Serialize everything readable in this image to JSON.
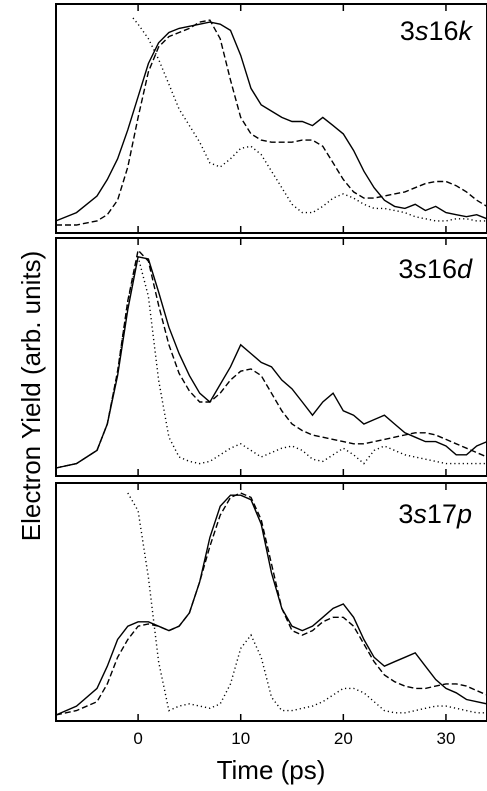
{
  "chart_data": {
    "type": "line",
    "xlabel": "Time (ps)",
    "ylabel": "Electron Yield (arb. units)",
    "xlim": [
      -8,
      34
    ],
    "xticks": [
      0,
      10,
      20,
      30
    ],
    "grid": false,
    "panels": [
      {
        "label_prefix": "3",
        "label_italic1": "s",
        "label_mid": "16",
        "label_italic2": "k",
        "ylim": [
          0,
          1
        ],
        "series": [
          {
            "style": "solid",
            "x": [
              -8,
              -6,
              -4,
              -3,
              -2,
              -1,
              0,
              1,
              2,
              3,
              4,
              5,
              6,
              7,
              8,
              9,
              10,
              11,
              12,
              13,
              14,
              15,
              16,
              17,
              18,
              19,
              20,
              21,
              22,
              23,
              24,
              25,
              26,
              27,
              28,
              29,
              30,
              31,
              32,
              33,
              34
            ],
            "y": [
              0.02,
              0.06,
              0.14,
              0.22,
              0.32,
              0.46,
              0.62,
              0.78,
              0.88,
              0.93,
              0.95,
              0.96,
              0.97,
              0.98,
              0.97,
              0.94,
              0.82,
              0.66,
              0.58,
              0.55,
              0.52,
              0.5,
              0.5,
              0.48,
              0.52,
              0.48,
              0.44,
              0.36,
              0.26,
              0.18,
              0.12,
              0.09,
              0.08,
              0.1,
              0.07,
              0.09,
              0.06,
              0.05,
              0.04,
              0.05,
              0.03
            ]
          },
          {
            "style": "dashed",
            "x": [
              -8,
              -6,
              -4,
              -3,
              -2,
              -1,
              0,
              1,
              2,
              3,
              4,
              5,
              6,
              7,
              8,
              9,
              10,
              11,
              12,
              13,
              14,
              15,
              16,
              17,
              18,
              19,
              20,
              21,
              22,
              23,
              24,
              25,
              26,
              27,
              28,
              29,
              30,
              31,
              32,
              33,
              34
            ],
            "y": [
              0.0,
              0.0,
              0.02,
              0.05,
              0.12,
              0.28,
              0.52,
              0.74,
              0.86,
              0.91,
              0.93,
              0.95,
              0.98,
              0.99,
              0.9,
              0.7,
              0.52,
              0.44,
              0.41,
              0.4,
              0.4,
              0.4,
              0.41,
              0.41,
              0.38,
              0.3,
              0.22,
              0.16,
              0.13,
              0.13,
              0.14,
              0.15,
              0.16,
              0.18,
              0.2,
              0.21,
              0.21,
              0.19,
              0.16,
              0.12,
              0.09
            ]
          },
          {
            "style": "dotted",
            "x": [
              -0.5,
              0,
              1,
              2,
              3,
              4,
              5,
              6,
              7,
              8,
              9,
              10,
              11,
              12,
              13,
              14,
              15,
              16,
              17,
              18,
              19,
              20,
              21,
              22,
              23,
              24,
              25,
              26,
              27,
              28,
              29,
              30,
              31,
              32,
              33,
              34
            ],
            "y": [
              1.0,
              0.97,
              0.9,
              0.8,
              0.68,
              0.56,
              0.48,
              0.4,
              0.3,
              0.28,
              0.32,
              0.37,
              0.38,
              0.34,
              0.26,
              0.18,
              0.1,
              0.06,
              0.06,
              0.09,
              0.13,
              0.15,
              0.13,
              0.1,
              0.08,
              0.08,
              0.07,
              0.06,
              0.04,
              0.03,
              0.02,
              0.02,
              0.03,
              0.03,
              0.02,
              0.02
            ]
          }
        ]
      },
      {
        "label_prefix": "3",
        "label_italic1": "s",
        "label_mid": "16",
        "label_italic2": "d",
        "ylim": [
          0,
          1
        ],
        "series": [
          {
            "style": "solid",
            "x": [
              -8,
              -6,
              -4,
              -3,
              -2,
              -1,
              0,
              1,
              2,
              3,
              4,
              5,
              6,
              7,
              8,
              9,
              10,
              11,
              12,
              13,
              14,
              15,
              16,
              17,
              18,
              19,
              20,
              21,
              22,
              23,
              24,
              25,
              26,
              27,
              28,
              29,
              30,
              31,
              32,
              33,
              34
            ],
            "y": [
              0.0,
              0.02,
              0.08,
              0.2,
              0.42,
              0.72,
              0.96,
              0.95,
              0.8,
              0.64,
              0.52,
              0.42,
              0.34,
              0.3,
              0.38,
              0.46,
              0.56,
              0.52,
              0.48,
              0.46,
              0.4,
              0.36,
              0.3,
              0.24,
              0.3,
              0.34,
              0.26,
              0.24,
              0.2,
              0.22,
              0.24,
              0.2,
              0.16,
              0.14,
              0.12,
              0.12,
              0.1,
              0.06,
              0.06,
              0.1,
              0.12
            ]
          },
          {
            "style": "dashed",
            "x": [
              -8,
              -6,
              -4,
              -3,
              -2,
              -1,
              0,
              1,
              2,
              3,
              4,
              5,
              6,
              7,
              8,
              9,
              10,
              11,
              12,
              13,
              14,
              15,
              16,
              17,
              18,
              19,
              20,
              21,
              22,
              23,
              24,
              25,
              26,
              27,
              28,
              29,
              30,
              31,
              32,
              33,
              34
            ],
            "y": [
              0.0,
              0.02,
              0.08,
              0.2,
              0.44,
              0.76,
              0.99,
              0.94,
              0.74,
              0.56,
              0.43,
              0.35,
              0.3,
              0.3,
              0.34,
              0.4,
              0.44,
              0.45,
              0.42,
              0.34,
              0.26,
              0.2,
              0.17,
              0.15,
              0.14,
              0.13,
              0.12,
              0.11,
              0.11,
              0.12,
              0.13,
              0.14,
              0.15,
              0.16,
              0.16,
              0.15,
              0.13,
              0.11,
              0.09,
              0.07,
              0.05
            ]
          },
          {
            "style": "dotted",
            "x": [
              -8,
              -6,
              -4,
              -3,
              -2,
              -1,
              0,
              1,
              2,
              3,
              4,
              5,
              6,
              7,
              8,
              9,
              10,
              11,
              12,
              13,
              14,
              15,
              16,
              17,
              18,
              19,
              20,
              21,
              22,
              23,
              24,
              25,
              26,
              27,
              28,
              29,
              30,
              31,
              32,
              33,
              34
            ],
            "y": [
              0.0,
              0.02,
              0.08,
              0.2,
              0.44,
              0.76,
              0.96,
              0.78,
              0.4,
              0.14,
              0.05,
              0.03,
              0.02,
              0.03,
              0.06,
              0.09,
              0.11,
              0.08,
              0.05,
              0.07,
              0.09,
              0.1,
              0.08,
              0.04,
              0.03,
              0.06,
              0.09,
              0.06,
              0.02,
              0.08,
              0.1,
              0.08,
              0.06,
              0.05,
              0.04,
              0.03,
              0.02,
              0.02,
              0.02,
              0.02,
              0.02
            ]
          }
        ]
      },
      {
        "label_prefix": "3",
        "label_italic1": "s",
        "label_mid": "17",
        "label_italic2": "p",
        "ylim": [
          0,
          1
        ],
        "series": [
          {
            "style": "solid",
            "x": [
              -8,
              -6,
              -4,
              -3,
              -2,
              -1,
              0,
              1,
              2,
              3,
              4,
              5,
              6,
              7,
              8,
              9,
              10,
              11,
              12,
              13,
              14,
              15,
              16,
              17,
              18,
              19,
              20,
              21,
              22,
              23,
              24,
              25,
              26,
              27,
              28,
              29,
              30,
              31,
              32,
              33,
              34
            ],
            "y": [
              0.0,
              0.04,
              0.12,
              0.22,
              0.34,
              0.4,
              0.42,
              0.42,
              0.4,
              0.38,
              0.4,
              0.46,
              0.6,
              0.8,
              0.94,
              0.99,
              0.99,
              0.97,
              0.86,
              0.64,
              0.48,
              0.4,
              0.38,
              0.4,
              0.44,
              0.48,
              0.5,
              0.44,
              0.34,
              0.26,
              0.22,
              0.24,
              0.26,
              0.28,
              0.22,
              0.16,
              0.12,
              0.1,
              0.07,
              0.06,
              0.05
            ]
          },
          {
            "style": "dashed",
            "x": [
              -8,
              -6,
              -4,
              -3,
              -2,
              -1,
              0,
              1,
              2,
              3,
              4,
              5,
              6,
              7,
              8,
              9,
              10,
              11,
              12,
              13,
              14,
              15,
              16,
              17,
              18,
              19,
              20,
              21,
              22,
              23,
              24,
              25,
              26,
              27,
              28,
              29,
              30,
              31,
              32,
              33,
              34
            ],
            "y": [
              0.0,
              0.02,
              0.06,
              0.14,
              0.26,
              0.34,
              0.4,
              0.41,
              0.4,
              0.38,
              0.4,
              0.46,
              0.6,
              0.76,
              0.9,
              0.98,
              1.0,
              0.98,
              0.88,
              0.68,
              0.48,
              0.38,
              0.36,
              0.38,
              0.42,
              0.44,
              0.44,
              0.4,
              0.32,
              0.24,
              0.18,
              0.15,
              0.13,
              0.12,
              0.12,
              0.13,
              0.14,
              0.14,
              0.13,
              0.11,
              0.09
            ]
          },
          {
            "style": "dotted",
            "x": [
              -1,
              0,
              1,
              2,
              3,
              4,
              5,
              6,
              7,
              8,
              9,
              10,
              11,
              12,
              13,
              14,
              15,
              16,
              17,
              18,
              19,
              20,
              21,
              22,
              23,
              24,
              25,
              26,
              27,
              28,
              29,
              30,
              31,
              32,
              33,
              34
            ],
            "y": [
              1.0,
              0.92,
              0.62,
              0.24,
              0.02,
              0.04,
              0.05,
              0.04,
              0.03,
              0.05,
              0.14,
              0.3,
              0.36,
              0.26,
              0.08,
              0.02,
              0.02,
              0.03,
              0.04,
              0.06,
              0.09,
              0.12,
              0.12,
              0.1,
              0.06,
              0.02,
              0.01,
              0.01,
              0.02,
              0.03,
              0.04,
              0.04,
              0.03,
              0.02,
              0.01,
              0.01
            ]
          }
        ]
      }
    ]
  }
}
